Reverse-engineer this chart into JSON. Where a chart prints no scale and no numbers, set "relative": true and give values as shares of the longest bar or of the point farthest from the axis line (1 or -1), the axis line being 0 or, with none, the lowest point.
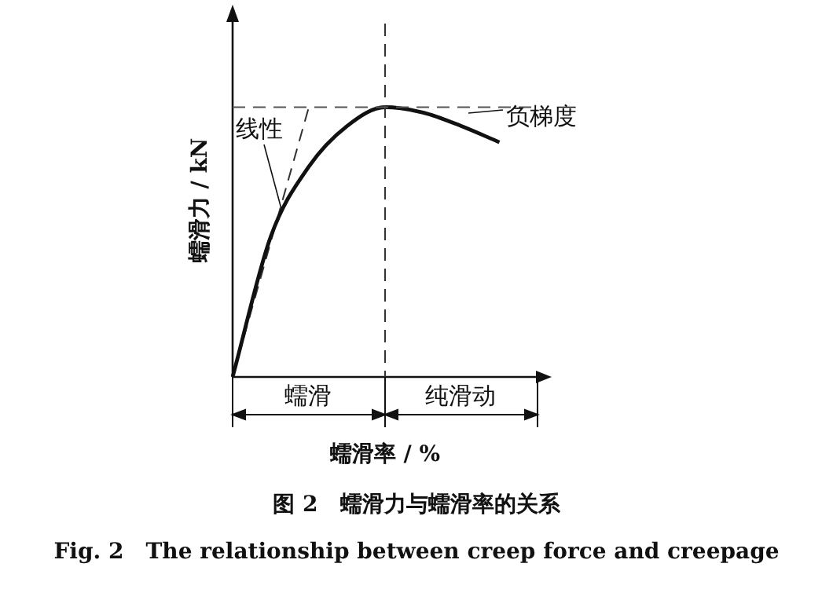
{
  "chart_data": {
    "type": "line",
    "relative": true,
    "xlabel": "蠕滑率 / %",
    "ylabel": "蠕滑力 / kN",
    "title": "图 2　蠕滑力与蠕滑率的关系",
    "subtitle": "Fig. 2　The relationship between creep force and creepage",
    "categories": [
      null,
      null,
      null,
      null,
      null,
      null,
      null,
      null,
      null
    ],
    "series": [
      {
        "color": "#111111",
        "values": [
          0,
          0.52,
          0.78,
          0.93,
          1,
          0.98,
          0.93,
          0.87,
          null
        ]
      },
      {
        "type": "line",
        "color": "#333333",
        "line_style": "dashed",
        "values": [
          0,
          null,
          1,
          null,
          null,
          null,
          null,
          null,
          null
        ]
      }
    ],
    "ref_lines": [
      {
        "axis": "y",
        "value": 1,
        "line_style": "dashed",
        "color": "#555555"
      }
    ],
    "annotations": [
      "线性",
      "负梯度",
      "蠕滑",
      "纯滑动"
    ],
    "marker": "none",
    "grid": false,
    "legend": false
  }
}
